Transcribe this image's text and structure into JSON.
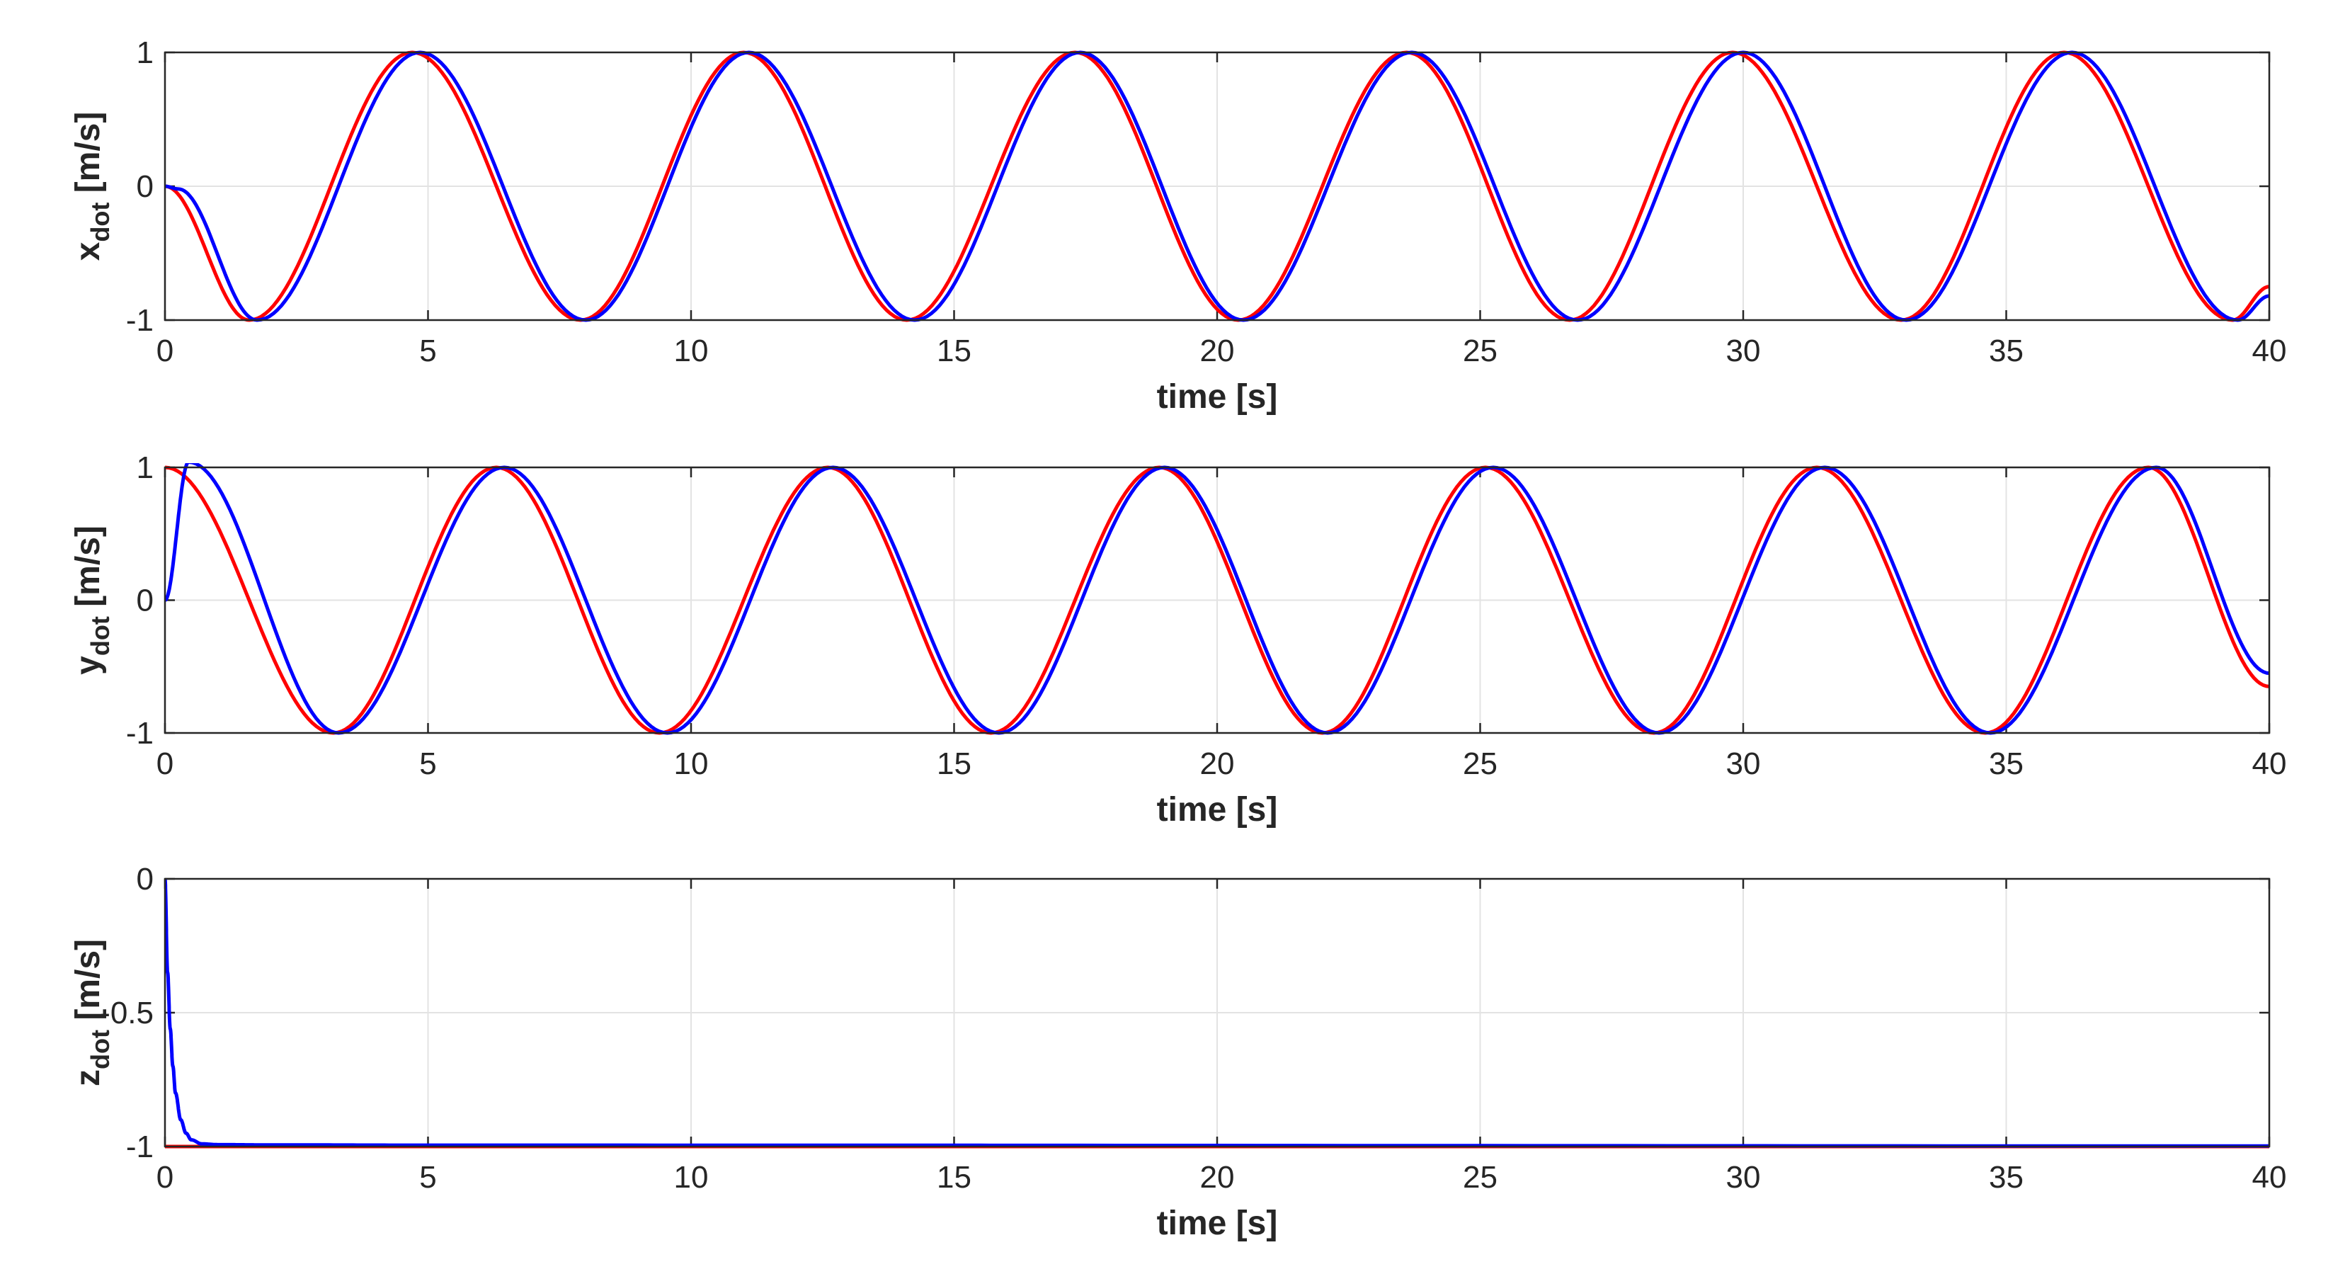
{
  "chart_data": [
    {
      "type": "line",
      "xlabel": "time [s]",
      "ylabel_main": "x",
      "ylabel_sub": "dot",
      "ylabel_unit": " [m/s]",
      "xlim": [
        0,
        40
      ],
      "ylim": [
        -1,
        1
      ],
      "xticks": [
        "0",
        "5",
        "10",
        "15",
        "20",
        "25",
        "30",
        "35",
        "40"
      ],
      "yticks": [
        "-1",
        "0",
        "1"
      ],
      "grid": true,
      "series": [
        {
          "color": "#ff0000",
          "values_description": "",
          "x": [
            0,
            1.6,
            4.7,
            7.9,
            11.0,
            14.1,
            17.3,
            20.4,
            23.6,
            26.7,
            29.8,
            33.0,
            36.1,
            39.3,
            40
          ],
          "y": [
            0,
            -1,
            1,
            -1,
            1,
            -1,
            1,
            -1,
            1,
            -1,
            1,
            -1,
            1,
            -1,
            -0.75
          ]
        },
        {
          "color": "#0000ff",
          "x": [
            0,
            0.25,
            1.75,
            4.85,
            8.0,
            11.1,
            14.25,
            17.4,
            20.5,
            23.7,
            26.85,
            30.0,
            33.1,
            36.25,
            39.4,
            40
          ],
          "y": [
            0,
            -0.02,
            -1,
            1,
            -1,
            1,
            -1,
            1,
            -1,
            1,
            -1,
            1,
            -1,
            1,
            -1,
            -0.82
          ]
        }
      ]
    },
    {
      "type": "line",
      "xlabel": "time [s]",
      "ylabel_main": "y",
      "ylabel_sub": "dot",
      "ylabel_unit": " [m/s]",
      "xlim": [
        0,
        40
      ],
      "ylim": [
        -1,
        1
      ],
      "xticks": [
        "0",
        "5",
        "10",
        "15",
        "20",
        "25",
        "30",
        "35",
        "40"
      ],
      "yticks": [
        "-1",
        "0",
        "1"
      ],
      "grid": true,
      "series": [
        {
          "color": "#ff0000",
          "x": [
            0,
            3.2,
            6.3,
            9.4,
            12.6,
            15.7,
            18.9,
            22.0,
            25.1,
            28.3,
            31.4,
            34.6,
            37.7,
            40
          ],
          "y": [
            1,
            -1,
            1,
            -1,
            1,
            -1,
            1,
            -1,
            1,
            -1,
            1,
            -1,
            1,
            -0.65
          ]
        },
        {
          "color": "#0000ff",
          "x": [
            0,
            0.45,
            3.3,
            6.45,
            9.55,
            12.7,
            15.85,
            19.0,
            22.1,
            25.25,
            28.4,
            31.55,
            34.7,
            37.85,
            40
          ],
          "y": [
            0,
            1.04,
            -1,
            1,
            -1,
            1,
            -1,
            1,
            -1,
            1,
            -1,
            1,
            -1,
            1,
            -0.55
          ]
        }
      ]
    },
    {
      "type": "line",
      "xlabel": "time [s]",
      "ylabel_main": "z",
      "ylabel_sub": "dot",
      "ylabel_unit": " [m/s]",
      "xlim": [
        0,
        40
      ],
      "ylim": [
        -1,
        0
      ],
      "xticks": [
        "0",
        "5",
        "10",
        "15",
        "20",
        "25",
        "30",
        "35",
        "40"
      ],
      "yticks": [
        "-1",
        "-0.5",
        "0"
      ],
      "grid": true,
      "series": [
        {
          "color": "#ff0000",
          "x": [
            0,
            40
          ],
          "y": [
            -1,
            -1
          ]
        },
        {
          "color": "#0000ff",
          "x": [
            0,
            0.05,
            0.1,
            0.15,
            0.2,
            0.3,
            0.4,
            0.5,
            0.7,
            1.0,
            2.0,
            5.0,
            40
          ],
          "y": [
            0,
            -0.35,
            -0.56,
            -0.7,
            -0.8,
            -0.9,
            -0.95,
            -0.975,
            -0.99,
            -0.993,
            -0.994,
            -0.995,
            -0.998
          ]
        }
      ]
    }
  ]
}
